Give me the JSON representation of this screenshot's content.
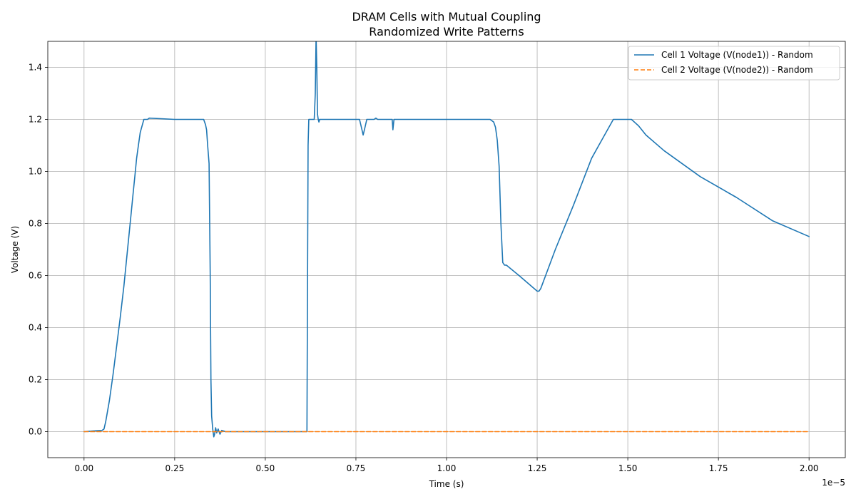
{
  "chart_data": {
    "type": "line",
    "title": "DRAM Cells with Mutual Coupling",
    "subtitle": "Randomized Write Patterns",
    "xlabel": "Time (s)",
    "ylabel": "Voltage (V)",
    "x_offset_label": "1e−5",
    "xlim": [
      -0.1,
      2.1
    ],
    "ylim": [
      -0.1,
      1.5
    ],
    "xticks": [
      0.0,
      0.25,
      0.5,
      0.75,
      1.0,
      1.25,
      1.5,
      1.75,
      2.0
    ],
    "xtick_labels": [
      "0.00",
      "0.25",
      "0.50",
      "0.75",
      "1.00",
      "1.25",
      "1.50",
      "1.75",
      "2.00"
    ],
    "yticks": [
      0.0,
      0.2,
      0.4,
      0.6,
      0.8,
      1.0,
      1.2,
      1.4
    ],
    "ytick_labels": [
      "0.0",
      "0.2",
      "0.4",
      "0.6",
      "0.8",
      "1.0",
      "1.2",
      "1.4"
    ],
    "grid": true,
    "legend_position": "top-right",
    "series": [
      {
        "name": "Cell 1 Voltage (V(node1)) - Random",
        "color": "#1f77b4",
        "dash": "solid",
        "x": [
          0.0,
          0.05,
          0.055,
          0.06,
          0.07,
          0.08,
          0.09,
          0.1,
          0.11,
          0.12,
          0.13,
          0.135,
          0.14,
          0.145,
          0.15,
          0.155,
          0.165,
          0.175,
          0.18,
          0.25,
          0.3,
          0.325,
          0.33,
          0.335,
          0.338,
          0.341,
          0.345,
          0.348,
          0.35,
          0.352,
          0.355,
          0.358,
          0.36,
          0.363,
          0.366,
          0.37,
          0.375,
          0.38,
          0.39,
          0.4,
          0.5,
          0.6,
          0.614,
          0.615,
          0.618,
          0.62,
          0.635,
          0.638,
          0.64,
          0.642,
          0.644,
          0.646,
          0.648,
          0.65,
          0.655,
          0.66,
          0.7,
          0.76,
          0.765,
          0.77,
          0.775,
          0.78,
          0.79,
          0.8,
          0.805,
          0.81,
          0.85,
          0.852,
          0.855,
          0.857,
          0.86,
          0.9,
          1.0,
          1.1,
          1.12,
          1.13,
          1.135,
          1.14,
          1.145,
          1.15,
          1.155,
          1.16,
          1.165,
          1.2,
          1.25,
          1.255,
          1.26,
          1.3,
          1.35,
          1.4,
          1.42,
          1.46,
          1.5,
          1.51,
          1.53,
          1.55,
          1.6,
          1.7,
          1.8,
          1.9,
          2.0
        ],
        "values": [
          0.0,
          0.005,
          0.01,
          0.04,
          0.12,
          0.22,
          0.33,
          0.44,
          0.56,
          0.7,
          0.84,
          0.91,
          0.98,
          1.05,
          1.1,
          1.15,
          1.2,
          1.2,
          1.205,
          1.2,
          1.2,
          1.2,
          1.2,
          1.18,
          1.16,
          1.1,
          1.03,
          0.6,
          0.2,
          0.06,
          0.01,
          -0.02,
          -0.01,
          0.015,
          -0.005,
          0.01,
          -0.01,
          0.005,
          0.0,
          0.0,
          0.0,
          0.0,
          0.0,
          0.0,
          1.1,
          1.2,
          1.2,
          1.3,
          1.52,
          1.4,
          1.22,
          1.2,
          1.19,
          1.2,
          1.2,
          1.2,
          1.2,
          1.2,
          1.17,
          1.14,
          1.17,
          1.2,
          1.2,
          1.2,
          1.205,
          1.2,
          1.2,
          1.16,
          1.2,
          1.2,
          1.2,
          1.2,
          1.2,
          1.2,
          1.2,
          1.19,
          1.17,
          1.12,
          1.02,
          0.8,
          0.65,
          0.64,
          0.64,
          0.6,
          0.54,
          0.54,
          0.55,
          0.7,
          0.87,
          1.05,
          1.1,
          1.2,
          1.2,
          1.2,
          1.175,
          1.14,
          1.08,
          0.98,
          0.9,
          0.81,
          0.75
        ]
      },
      {
        "name": "Cell 2 Voltage (V(node2)) - Random",
        "color": "#ff7f0e",
        "dash": "dashed",
        "x": [
          0.0,
          2.0
        ],
        "values": [
          0.0,
          0.0
        ]
      }
    ]
  }
}
